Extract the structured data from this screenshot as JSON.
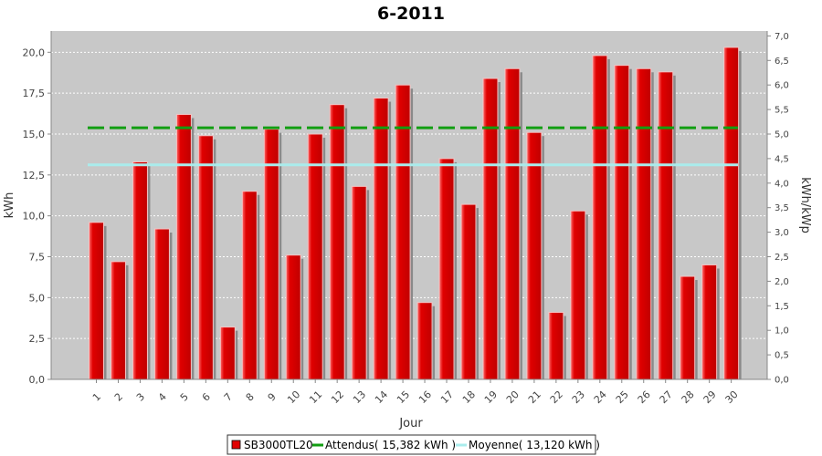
{
  "chart_data": {
    "type": "bar",
    "title": "6-2011",
    "xlabel": "Jour",
    "ylabel": "kWh",
    "y2label": "kWh/kWp",
    "ylim": [
      0,
      21.3
    ],
    "y2lim": [
      0,
      7.1
    ],
    "yticks": [
      "0,0",
      "2,5",
      "5,0",
      "7,5",
      "10,0",
      "12,5",
      "15,0",
      "17,5",
      "20,0"
    ],
    "y2ticks": [
      "0,0",
      "0,5",
      "1,0",
      "1,5",
      "2,0",
      "2,5",
      "3,0",
      "3,5",
      "4,0",
      "4,5",
      "5,0",
      "5,5",
      "6,0",
      "6,5",
      "7,0"
    ],
    "categories": [
      "1",
      "2",
      "3",
      "4",
      "5",
      "6",
      "7",
      "8",
      "9",
      "10",
      "11",
      "12",
      "13",
      "14",
      "15",
      "16",
      "17",
      "18",
      "19",
      "20",
      "21",
      "22",
      "23",
      "24",
      "25",
      "26",
      "27",
      "28",
      "29",
      "30"
    ],
    "series": [
      {
        "name": "SB3000TL20",
        "color": "#e00000",
        "values": [
          9.6,
          7.2,
          13.3,
          9.2,
          16.2,
          14.9,
          3.2,
          11.5,
          15.3,
          7.6,
          15.0,
          16.8,
          11.8,
          17.2,
          18.0,
          4.7,
          13.5,
          10.7,
          18.4,
          19.0,
          15.1,
          4.1,
          10.3,
          19.8,
          19.2,
          19.0,
          18.8,
          6.3,
          7.0,
          20.3
        ]
      }
    ],
    "reference_lines": [
      {
        "name": "Attendus( 15,382 kWh )",
        "value": 15.382,
        "color": "#129e12"
      },
      {
        "name": "Moyenne( 13,120 kWh )",
        "value": 13.12,
        "color": "#a9ecec"
      }
    ],
    "legend": {
      "placement": "bottom"
    },
    "grid": true
  }
}
